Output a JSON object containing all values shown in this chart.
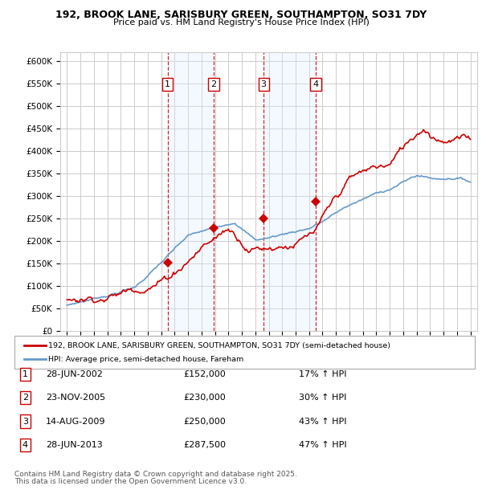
{
  "title1": "192, BROOK LANE, SARISBURY GREEN, SOUTHAMPTON, SO31 7DY",
  "title2": "Price paid vs. HM Land Registry's House Price Index (HPI)",
  "ylim": [
    0,
    620000
  ],
  "yticks": [
    0,
    50000,
    100000,
    150000,
    200000,
    250000,
    300000,
    350000,
    400000,
    450000,
    500000,
    550000,
    600000
  ],
  "ytick_labels": [
    "£0",
    "£50K",
    "£100K",
    "£150K",
    "£200K",
    "£250K",
    "£300K",
    "£350K",
    "£400K",
    "£450K",
    "£500K",
    "£550K",
    "£600K"
  ],
  "background_color": "#ffffff",
  "plot_bg_color": "#ffffff",
  "grid_color": "#cccccc",
  "sale_color": "#cc0000",
  "hpi_color": "#6699cc",
  "shade_color": "#ddeeff",
  "transactions": [
    {
      "num": 1,
      "date": "2002-06-28",
      "price": 152000,
      "hpi_pct": 17,
      "x": 2002.49
    },
    {
      "num": 2,
      "date": "2005-11-23",
      "price": 230000,
      "hpi_pct": 30,
      "x": 2005.9
    },
    {
      "num": 3,
      "date": "2009-08-14",
      "price": 250000,
      "hpi_pct": 43,
      "x": 2009.62
    },
    {
      "num": 4,
      "date": "2013-06-28",
      "price": 287500,
      "hpi_pct": 47,
      "x": 2013.49
    }
  ],
  "legend_sale_label": "192, BROOK LANE, SARISBURY GREEN, SOUTHAMPTON, SO31 7DY (semi-detached house)",
  "legend_hpi_label": "HPI: Average price, semi-detached house, Fareham",
  "footer1": "Contains HM Land Registry data © Crown copyright and database right 2025.",
  "footer2": "This data is licensed under the Open Government Licence v3.0.",
  "table_rows": [
    [
      "1",
      "28-JUN-2002",
      "£152,000",
      "17% ↑ HPI"
    ],
    [
      "2",
      "23-NOV-2005",
      "£230,000",
      "30% ↑ HPI"
    ],
    [
      "3",
      "14-AUG-2009",
      "£250,000",
      "43% ↑ HPI"
    ],
    [
      "4",
      "28-JUN-2013",
      "£287,500",
      "47% ↑ HPI"
    ]
  ],
  "xlim_left": 1994.5,
  "xlim_right": 2025.5
}
